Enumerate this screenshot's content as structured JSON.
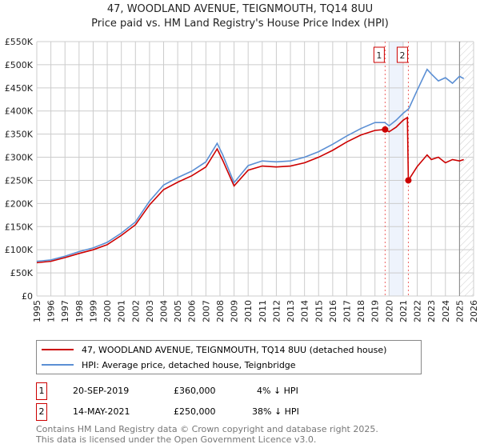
{
  "title": "47, WOODLAND AVENUE, TEIGNMOUTH, TQ14 8UU",
  "subtitle": "Price paid vs. HM Land Registry's House Price Index (HPI)",
  "chart_data": {
    "type": "line",
    "title": "47, WOODLAND AVENUE, TEIGNMOUTH, TQ14 8UU",
    "ylim": [
      0,
      550000
    ],
    "xlim": [
      1995,
      2026
    ],
    "yticks": [
      "£0",
      "£50K",
      "£100K",
      "£150K",
      "£200K",
      "£250K",
      "£300K",
      "£350K",
      "£400K",
      "£450K",
      "£500K",
      "£550K"
    ],
    "xticks": [
      "1995",
      "1996",
      "1997",
      "1998",
      "1999",
      "2000",
      "2001",
      "2002",
      "2003",
      "2004",
      "2005",
      "2006",
      "2007",
      "2008",
      "2009",
      "2010",
      "2011",
      "2012",
      "2013",
      "2014",
      "2015",
      "2016",
      "2017",
      "2018",
      "2019",
      "2020",
      "2021",
      "2022",
      "2023",
      "2024",
      "2025",
      "2026"
    ],
    "grid": true,
    "series": [
      {
        "name": "HPI: Average price, detached house, Teignbridge",
        "color": "#5b8fd4",
        "x": [
          1995,
          1996,
          1997,
          1998,
          1999,
          2000,
          2001,
          2002,
          2003,
          2004,
          2005,
          2006,
          2007,
          2007.8,
          2008.2,
          2009,
          2010,
          2011,
          2012,
          2013,
          2014,
          2015,
          2016,
          2017,
          2018,
          2019,
          2019.7,
          2020,
          2020.5,
          2021,
          2021.4,
          2022,
          2022.7,
          2023,
          2023.5,
          2024,
          2024.5,
          2025,
          2025.3
        ],
        "y": [
          75000,
          78000,
          86000,
          96000,
          104000,
          116000,
          136000,
          160000,
          205000,
          240000,
          256000,
          270000,
          290000,
          330000,
          305000,
          245000,
          282000,
          292000,
          290000,
          292000,
          300000,
          312000,
          328000,
          346000,
          362000,
          375000,
          375000,
          368000,
          380000,
          395000,
          405000,
          445000,
          490000,
          480000,
          465000,
          472000,
          460000,
          475000,
          470000
        ]
      },
      {
        "name": "47, WOODLAND AVENUE, TEIGNMOUTH, TQ14 8UU (detached house)",
        "color": "#cc0000",
        "x": [
          1995,
          1996,
          1997,
          1998,
          1999,
          2000,
          2001,
          2002,
          2003,
          2004,
          2005,
          2006,
          2007,
          2007.8,
          2008.2,
          2009,
          2010,
          2011,
          2012,
          2013,
          2014,
          2015,
          2016,
          2017,
          2018,
          2019,
          2019.72,
          2020,
          2020.5,
          2021,
          2021.3,
          2021.37,
          2022,
          2022.7,
          2023,
          2023.5,
          2024,
          2024.5,
          2025,
          2025.3
        ],
        "y": [
          72000,
          75000,
          83000,
          92000,
          100000,
          111000,
          131000,
          154000,
          197000,
          230000,
          246000,
          260000,
          279000,
          318000,
          293000,
          238000,
          272000,
          281000,
          279000,
          281000,
          288000,
          300000,
          315000,
          333000,
          348000,
          358000,
          360000,
          355000,
          365000,
          380000,
          386000,
          250000,
          280000,
          305000,
          295000,
          300000,
          288000,
          295000,
          292000,
          295000
        ]
      }
    ],
    "annotations": [
      {
        "label": "1",
        "x": 2019.72,
        "y": 360000
      },
      {
        "label": "2",
        "x": 2021.37,
        "y": 250000
      }
    ],
    "shaded_x": [
      2020,
      2021
    ],
    "forecast_from": 2025
  },
  "legend": {
    "property": "47, WOODLAND AVENUE, TEIGNMOUTH, TQ14 8UU (detached house)",
    "hpi": "HPI: Average price, detached house, Teignbridge"
  },
  "sales": [
    {
      "num": "1",
      "date": "20-SEP-2019",
      "price": "£360,000",
      "delta": "4% ↓ HPI"
    },
    {
      "num": "2",
      "date": "14-MAY-2021",
      "price": "£250,000",
      "delta": "38% ↓ HPI"
    }
  ],
  "footer": [
    "Contains HM Land Registry data © Crown copyright and database right 2025.",
    "This data is licensed under the Open Government Licence v3.0."
  ]
}
